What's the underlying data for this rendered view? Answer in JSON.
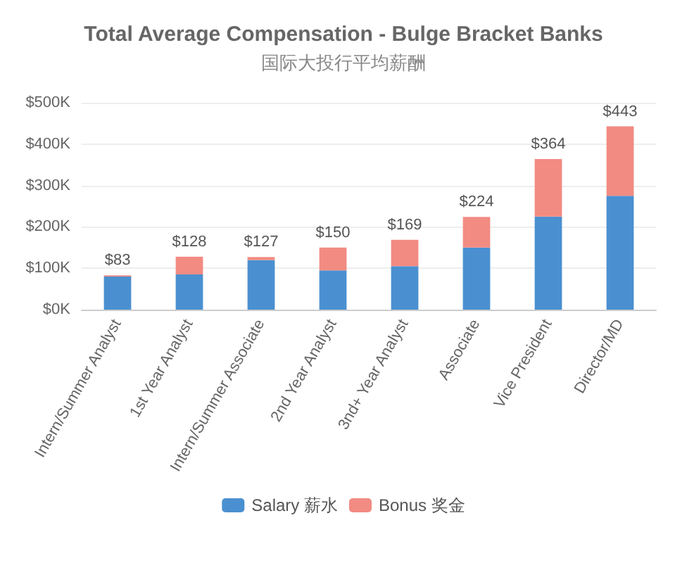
{
  "chart_data": {
    "type": "bar",
    "title": "Total Average Compensation - Bulge Bracket Banks",
    "subtitle": "国际大投行平均薪酬",
    "categories": [
      "Intern/Summer Analyst",
      "1st Year Analyst",
      "Intern/Summer Associate",
      "2nd Year Analyst",
      "3nd+ Year Analyst",
      "Associate",
      "Vice President",
      "Director/MD"
    ],
    "series": [
      {
        "name": "Salary 薪水",
        "color": "#4a90d0",
        "values": [
          80,
          85,
          120,
          95,
          105,
          150,
          225,
          275
        ]
      },
      {
        "name": "Bonus 奖金",
        "color": "#f28b82",
        "values": [
          3,
          43,
          7,
          55,
          64,
          74,
          139,
          168
        ]
      }
    ],
    "stacked": true,
    "totals": [
      "$83",
      "$128",
      "$127",
      "$150",
      "$169",
      "$224",
      "$364",
      "$443"
    ],
    "ylim": [
      0,
      500
    ],
    "yticks": [
      {
        "value": 0,
        "label": "$0K"
      },
      {
        "value": 100,
        "label": "$100K"
      },
      {
        "value": 200,
        "label": "$200K"
      },
      {
        "value": 300,
        "label": "$300K"
      },
      {
        "value": 400,
        "label": "$400K"
      },
      {
        "value": 500,
        "label": "$500K"
      }
    ],
    "grid": "y",
    "legend": "bottom"
  }
}
